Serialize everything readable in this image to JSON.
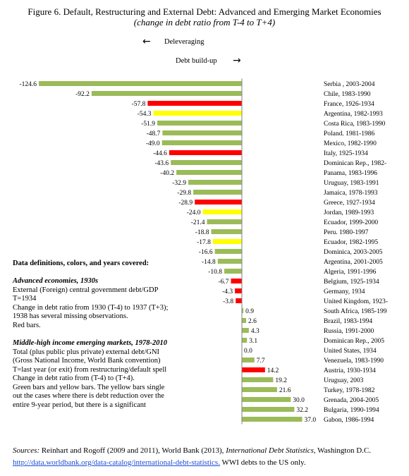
{
  "title": "Figure 6. Default, Restructuring and External Debt: Advanced and Emerging Market Economies",
  "subtitle": "(change in debt ratio from T-4 to T+4)",
  "arrows": {
    "left_label": "Deleveraging",
    "right_label": "Debt build-up",
    "left_arrow": "←",
    "right_arrow": "→"
  },
  "colors": {
    "green": "#9bbb59",
    "red": "#ff0000",
    "yellow": "#ffff00"
  },
  "chart_data": {
    "type": "bar",
    "orientation": "horizontal",
    "xlim": [
      -124.6,
      37.0
    ],
    "categories": [
      "Serbia , 2003-2004",
      "Chile, 1983-1990",
      "France, 1926-1934",
      "Argentina, 1982-1993",
      "Costa Rica, 1983-1990",
      "Poland. 1981-1986",
      "Mexico, 1982-1990",
      "Italy, 1925-1934",
      "Dominican Rep., 1982-",
      "Panama, 1983-1996",
      "Uruguay, 1983-1991",
      "Jamaica, 1978-1993",
      "Greece, 1927-1934",
      "Jordan, 1989-1993",
      "Ecuador, 1999-2000",
      "Peru. 1980-1997",
      "Ecuador, 1982-1995",
      "Dominica, 2003-2005",
      "Argentina, 2001-2005",
      "Algeria, 1991-1996",
      "Belgium, 1925-1934",
      "Germany, 1934",
      "United Kingdom, 1923-",
      "South Africa, 1985-199",
      "Brazil, 1983-1994",
      "Russia, 1991-2000",
      "Dominican Rep., 2005",
      "United States, 1934",
      "Venezuela, 1983-1990",
      "Austria, 1930-1934",
      "Uruguay, 2003",
      "Turkey, 1978-1982",
      "Grenada, 2004-2005",
      "Bulgaria, 1990-1994",
      "Gabon, 1986-1994"
    ],
    "values": [
      -124.6,
      -92.2,
      -57.8,
      -54.3,
      -51.9,
      -48.7,
      -49.0,
      -44.6,
      -43.6,
      -40.2,
      -32.9,
      -29.8,
      -28.9,
      -24.0,
      -21.4,
      -18.8,
      -17.8,
      -16.6,
      -14.8,
      -10.8,
      -6.7,
      -4.3,
      -3.8,
      0.9,
      2.6,
      4.3,
      3.1,
      0.0,
      7.7,
      14.2,
      19.2,
      21.6,
      30.0,
      32.2,
      37.0
    ],
    "value_labels": [
      "-124.6",
      "-92.2",
      "-57.8",
      "-54.3",
      "-51.9",
      "-48.7",
      "-49.0",
      "-44.6",
      "-43.6",
      "-40.2",
      "-32.9",
      "-29.8",
      "-28.9",
      "-24.0",
      "-21.4",
      "-18.8",
      "-17.8",
      "-16.6",
      "-14.8",
      "-10.8",
      "-6.7",
      "-4.3",
      "-3.8",
      "0.9",
      "2.6",
      "4.3",
      "3.1",
      "0.0",
      "7.7",
      "14.2",
      "19.2",
      "21.6",
      "30.0",
      "32.2",
      "37.0"
    ],
    "bar_colors": [
      "green",
      "green",
      "red",
      "yellow",
      "green",
      "green",
      "green",
      "red",
      "green",
      "green",
      "green",
      "green",
      "red",
      "yellow",
      "green",
      "green",
      "yellow",
      "green",
      "green",
      "green",
      "red",
      "red",
      "red",
      "green",
      "green",
      "green",
      "green",
      "green",
      "green",
      "red",
      "green",
      "green",
      "green",
      "green",
      "green"
    ]
  },
  "notes": {
    "heading": "Data definitions, colors, and years covered:",
    "adv_heading": "Advanced economies, 1930s",
    "adv_lines": [
      "External (Foreign) central government debt/GDP",
      "T=1934",
      "Change in debt ratio from 1930 (T-4) to 1937 (T+3);",
      "1938 has several missing observations.",
      "Red bars."
    ],
    "em_heading": "Middle-high income emerging markets, 1978-2010",
    "em_lines": [
      "Total (plus public plus private) external debt/GNI",
      "(Gross National Income, World Bank convention)",
      "T=last year (or exit) from restructuring/default spell",
      "Change in debt ratio from (T-4) to (T+4).",
      "Green bars and yellow bars.  The yellow bars single",
      " out the cases where there is debt reduction over the",
      "entire 9-year period, but there is a  significant"
    ]
  },
  "sources": {
    "label": "Sources:",
    "text1": " Reinhart and Rogoff (2009 and 2011), World Bank (2013), ",
    "italic": "International Debt Statistics,",
    "text2": " Washington D.C.",
    "link": "http://data.worldbank.org/data-catalog/international-debt-statistics.",
    "text3": " WWI debts to the US only."
  }
}
